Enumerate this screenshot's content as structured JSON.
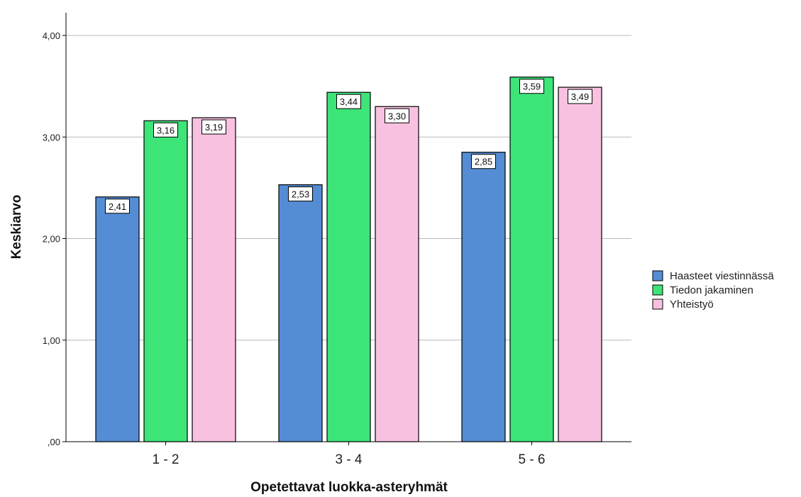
{
  "chart_data": {
    "type": "bar",
    "title": "",
    "xlabel": "Opetettavat luokka-asteryhmät",
    "ylabel": "Keskiarvo",
    "categories": [
      "1 - 2",
      "3 - 4",
      "5 - 6"
    ],
    "series": [
      {
        "name": "Haasteet viestinnässä",
        "color": "#548dd4",
        "values": [
          2.41,
          2.53,
          2.85
        ],
        "labels": [
          "2,41",
          "2,53",
          "2,85"
        ]
      },
      {
        "name": "Tiedon jakaminen",
        "color": "#3de478",
        "values": [
          3.16,
          3.44,
          3.59
        ],
        "labels": [
          "3,16",
          "3,44",
          "3,59"
        ]
      },
      {
        "name": "Yhteistyö",
        "color": "#f9c1e0",
        "values": [
          3.19,
          3.3,
          3.49
        ],
        "labels": [
          "3,19",
          "3,30",
          "3,49"
        ]
      }
    ],
    "ylim": [
      0,
      4
    ],
    "yticks": [
      0,
      1,
      2,
      3,
      4
    ],
    "ytick_labels": [
      ",00",
      "1,00",
      "2,00",
      "3,00",
      "4,00"
    ],
    "grid": true,
    "legend": "right"
  }
}
